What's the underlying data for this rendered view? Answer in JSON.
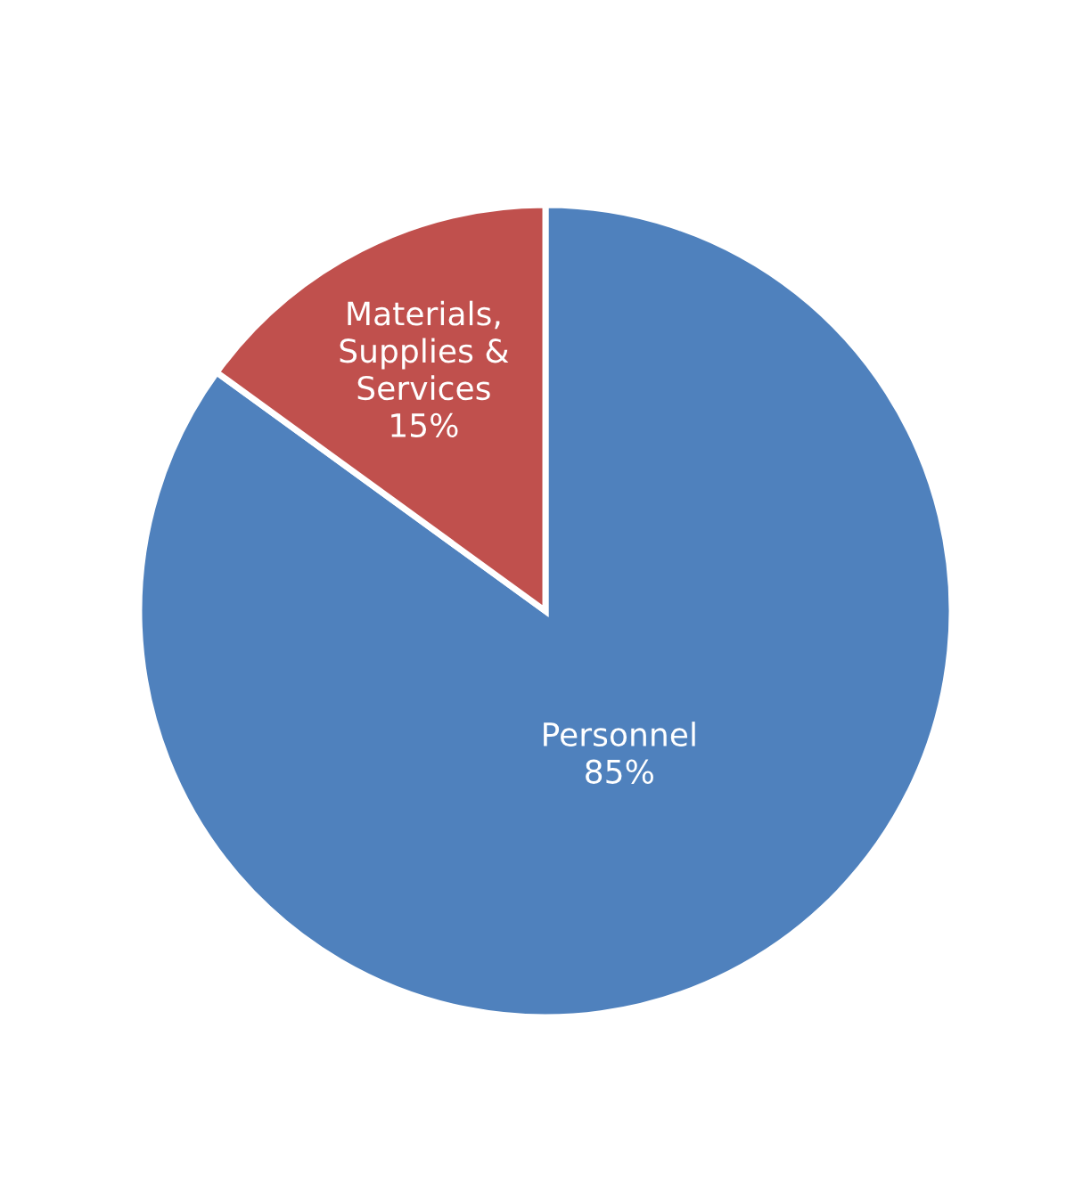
{
  "chart_data": {
    "type": "pie",
    "categories": [
      "Personnel",
      "Materials,\nSupplies &\nServices"
    ],
    "values": [
      85,
      15
    ],
    "colors": [
      "#4f81bd",
      "#c0504d"
    ],
    "value_labels": [
      "85%",
      "15%"
    ]
  }
}
